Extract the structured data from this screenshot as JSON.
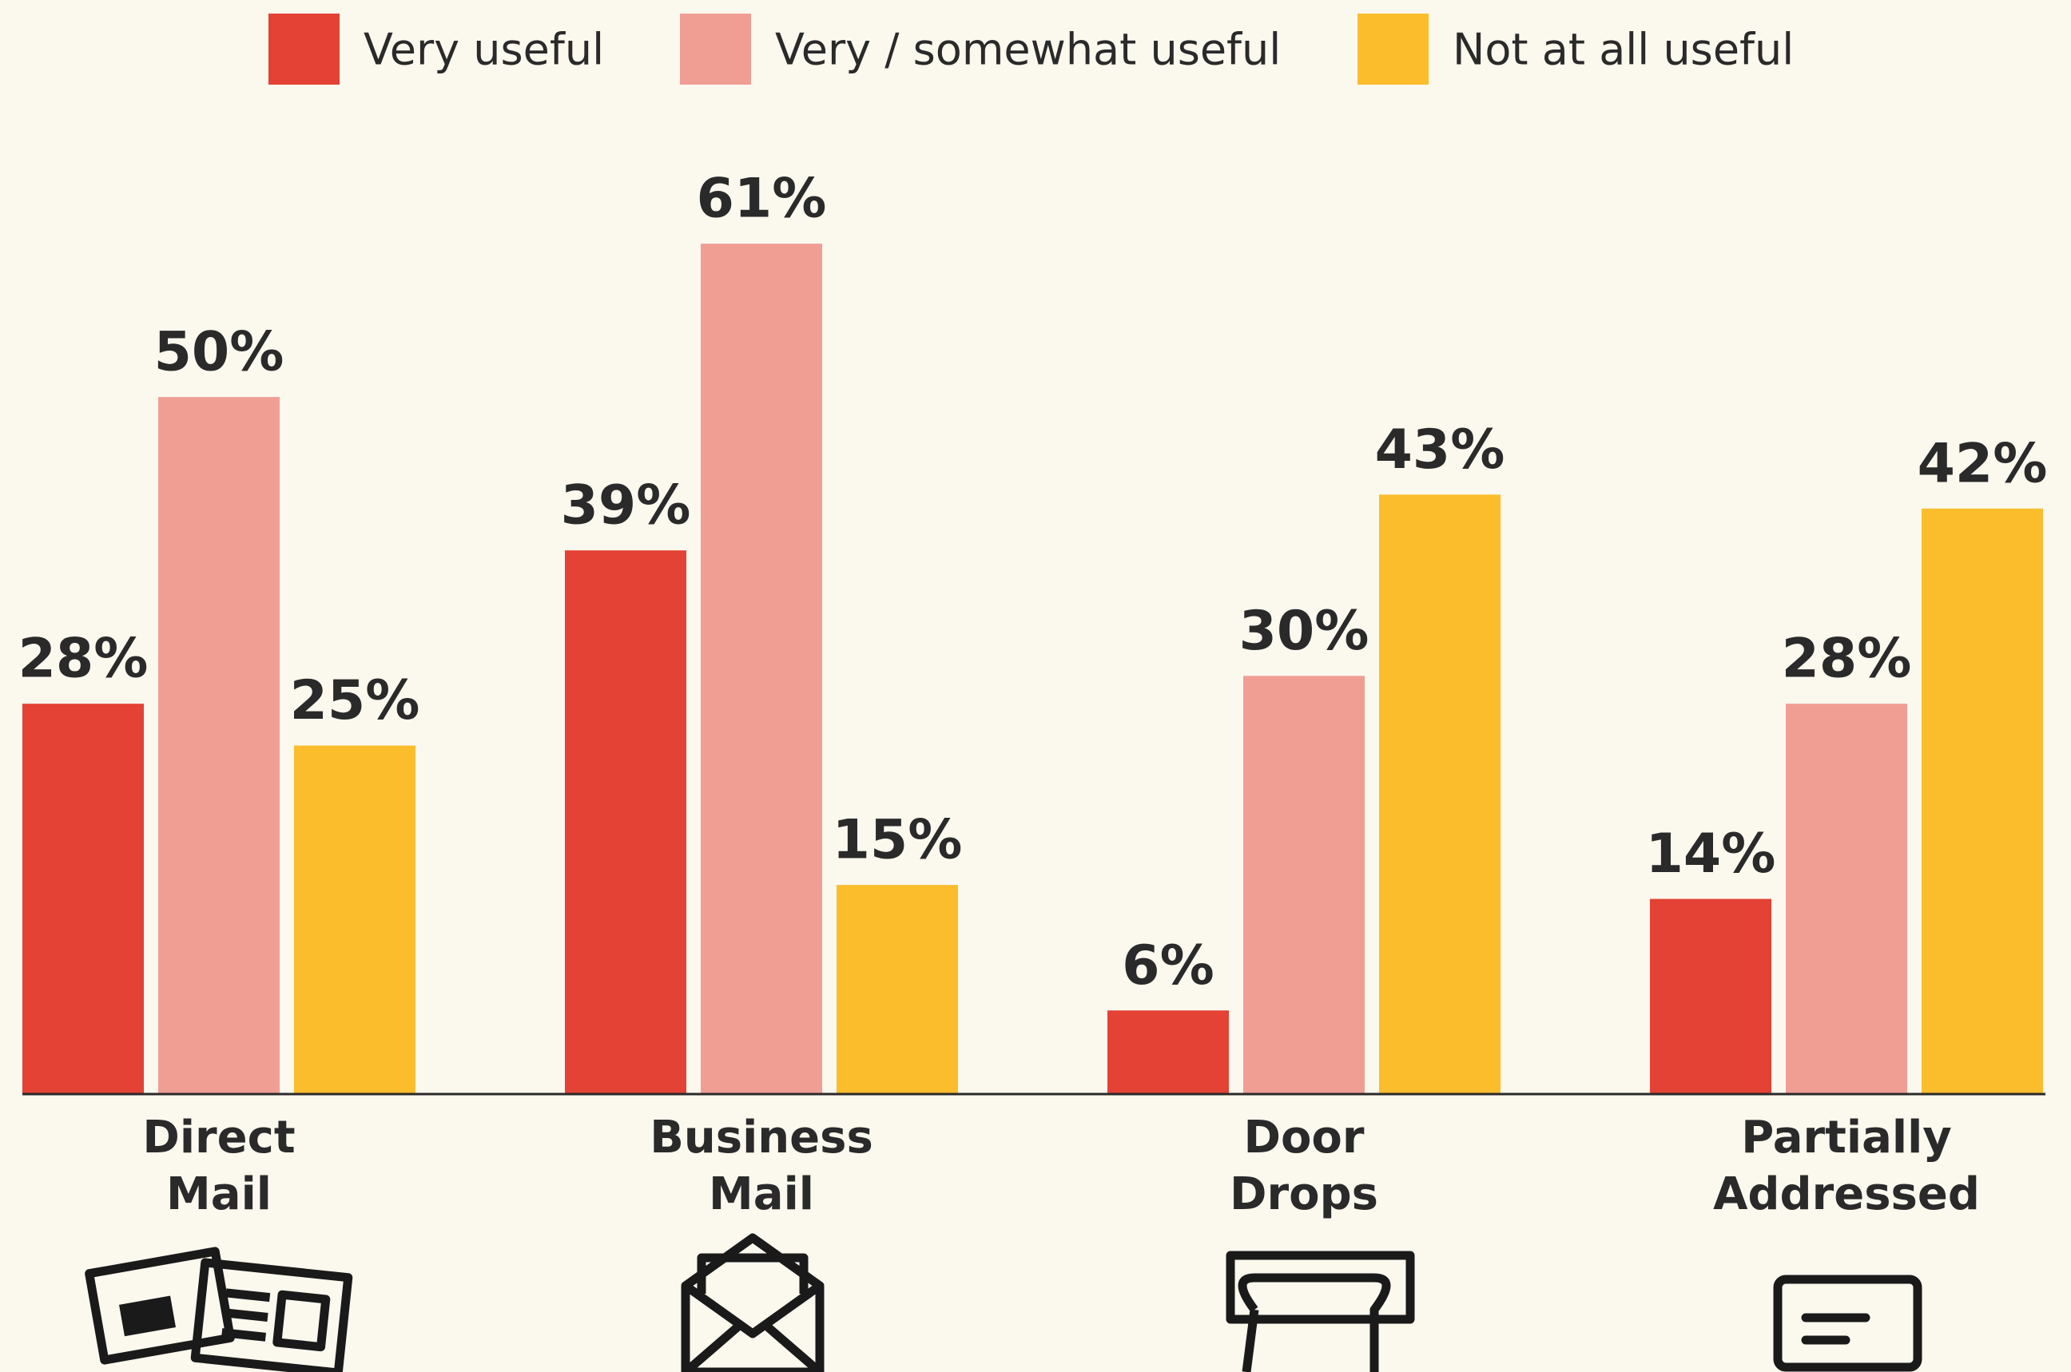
{
  "chart_data": {
    "type": "bar",
    "categories": [
      "Direct Mail",
      "Business Mail",
      "Door Drops",
      "Partially Addressed"
    ],
    "series": [
      {
        "name": "Very useful",
        "color": "#e34234",
        "values": [
          28,
          39,
          6,
          14
        ],
        "value_labels": [
          "28%",
          "39%",
          "6%",
          "14%"
        ]
      },
      {
        "name": "Very / somewhat useful",
        "color": "#f09e94",
        "values": [
          50,
          61,
          30,
          28
        ],
        "value_labels": [
          "50%",
          "61%",
          "30%",
          "28%"
        ]
      },
      {
        "name": "Not at all useful",
        "color": "#fbbd2c",
        "values": [
          25,
          15,
          43,
          42
        ],
        "value_labels": [
          "25%",
          "15%",
          "43%",
          "42%"
        ]
      }
    ],
    "ylim": [
      0,
      70
    ],
    "legend": "top"
  }
}
